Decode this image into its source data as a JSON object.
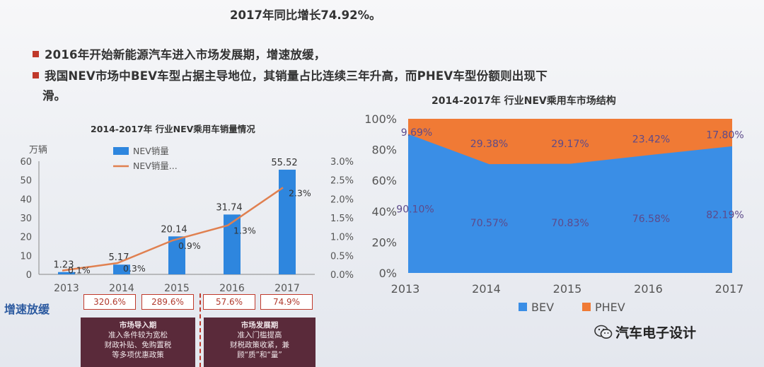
{
  "slide": {
    "bullet_line_0": "2017年同比增长74.92%。",
    "bullet_1": "2016年开始新能源汽车进入市场发展期，增速放缓，2017年同比增长74.92%。",
    "bullet_1_visible": "2016年开始新能源汽车进入市场发展期，增速放缓，2017年同比增长74.92%。",
    "bullet_2": "我国NEV市场中BEV车型占据主导地位，其销量占比连续三年升高，而PHEV车型份额则出现下",
    "bullet_2_cont": "滑。",
    "growth_label": "增速放缓",
    "growth_values": [
      "320.6%",
      "289.6%",
      "57.6%",
      "74.9%"
    ],
    "phase_1_title": "市场导入期",
    "phase_1_lines": [
      "准入条件较为宽松",
      "财政补贴、免购置税",
      "等多项优惠政策"
    ],
    "phase_2_title": "市场发展期",
    "phase_2_lines": [
      "准入门槛提高",
      "财税政策收紧，兼",
      "顾“质”和“量”"
    ],
    "brand": "汽车电子设计"
  },
  "colors": {
    "bar": "#2e86de",
    "line": "#e08050",
    "bev": "#3a8ee6",
    "phev": "#f07a35",
    "accent_red": "#c0392b"
  },
  "chart_data": [
    {
      "type": "bar",
      "title": "2014-2017年 行业NEV乘用车销量情况",
      "categories": [
        "2013",
        "2014",
        "2015",
        "2016",
        "2017"
      ],
      "ylabel": "万辆",
      "ylim": [
        0,
        60
      ],
      "yticks": [
        "0",
        "10",
        "20",
        "30",
        "40",
        "50",
        "60"
      ],
      "y2lim": [
        0,
        3.0
      ],
      "y2ticks": [
        "0.0%",
        "0.5%",
        "1.0%",
        "1.5%",
        "2.0%",
        "2.5%",
        "3.0%"
      ],
      "series": [
        {
          "name": "NEV销量",
          "type": "bar",
          "values": [
            1.23,
            5.17,
            20.14,
            31.74,
            55.52
          ],
          "labels": [
            "1.23",
            "5.17",
            "20.14",
            "31.74",
            "55.52"
          ]
        },
        {
          "name": "NEV销量...",
          "type": "line",
          "axis": "right",
          "values": [
            0.1,
            0.3,
            0.9,
            1.3,
            2.3
          ],
          "labels": [
            "0.1%",
            "0.3%",
            "0.9%",
            "1.3%",
            "2.3%"
          ]
        }
      ],
      "legend": "top"
    },
    {
      "type": "area",
      "title": "2014-2017年 行业NEV乘用车市场结构",
      "categories": [
        "2013",
        "2014",
        "2015",
        "2016",
        "2017"
      ],
      "ylim": [
        0,
        100
      ],
      "yticks": [
        "0%",
        "20%",
        "40%",
        "60%",
        "80%",
        "100%"
      ],
      "series": [
        {
          "name": "BEV",
          "values": [
            90.1,
            70.57,
            70.83,
            76.58,
            82.19
          ],
          "labels": [
            "90.10%",
            "70.57%",
            "70.83%",
            "76.58%",
            "82.19%"
          ]
        },
        {
          "name": "PHEV",
          "values": [
            9.69,
            29.38,
            29.17,
            23.42,
            17.8
          ],
          "labels": [
            "9.69%",
            "29.38%",
            "29.17%",
            "23.42%",
            "17.80%"
          ]
        }
      ],
      "legend": "bottom"
    }
  ]
}
